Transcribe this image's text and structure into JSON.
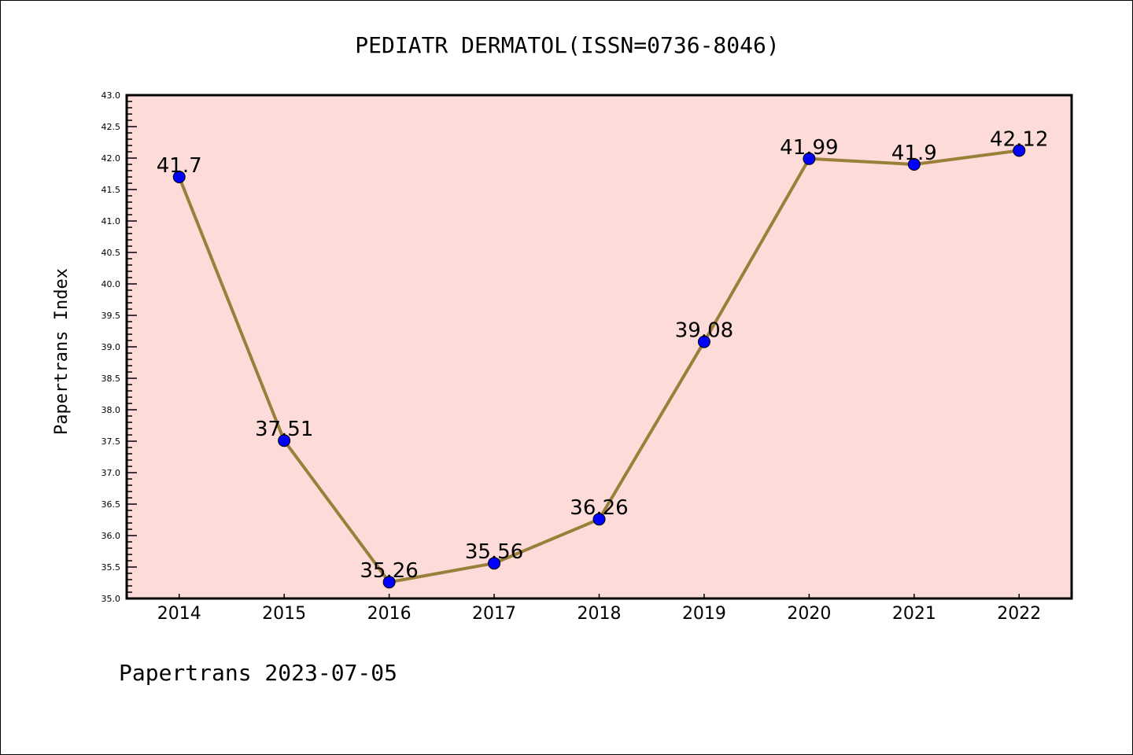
{
  "chart_data": {
    "type": "line",
    "title": "PEDIATR DERMATOL(ISSN=0736-8046)",
    "xlabel": "",
    "ylabel": "Papertrans Index",
    "x": [
      2014,
      2015,
      2016,
      2017,
      2018,
      2019,
      2020,
      2021,
      2022
    ],
    "x_tick_labels": [
      "2014",
      "2015",
      "2016",
      "2017",
      "2018",
      "2019",
      "2020",
      "2021",
      "2022"
    ],
    "series": [
      {
        "name": "Papertrans Index",
        "values": [
          41.7,
          37.51,
          35.26,
          35.56,
          36.26,
          39.08,
          41.99,
          41.9,
          42.12
        ]
      }
    ],
    "data_labels": [
      "41.7",
      "37.51",
      "35.26",
      "35.56",
      "36.26",
      "39.08",
      "41.99",
      "41.9",
      "42.12"
    ],
    "y_tick_labels": [
      "35.0",
      "35.5",
      "36.0",
      "36.5",
      "37.0",
      "37.5",
      "38.0",
      "38.5",
      "39.0",
      "39.5",
      "40.0",
      "40.5",
      "41.0",
      "41.5",
      "42.0",
      "42.5",
      "43.0"
    ],
    "ylim": [
      35.0,
      43.0
    ],
    "xlim": [
      2013.5,
      2022.5
    ],
    "grid": false,
    "colors": {
      "line": "#9a7f3a",
      "marker": "#0000ff",
      "plot_bg": "#fddbd8"
    }
  },
  "footer": "Papertrans 2023-07-05"
}
